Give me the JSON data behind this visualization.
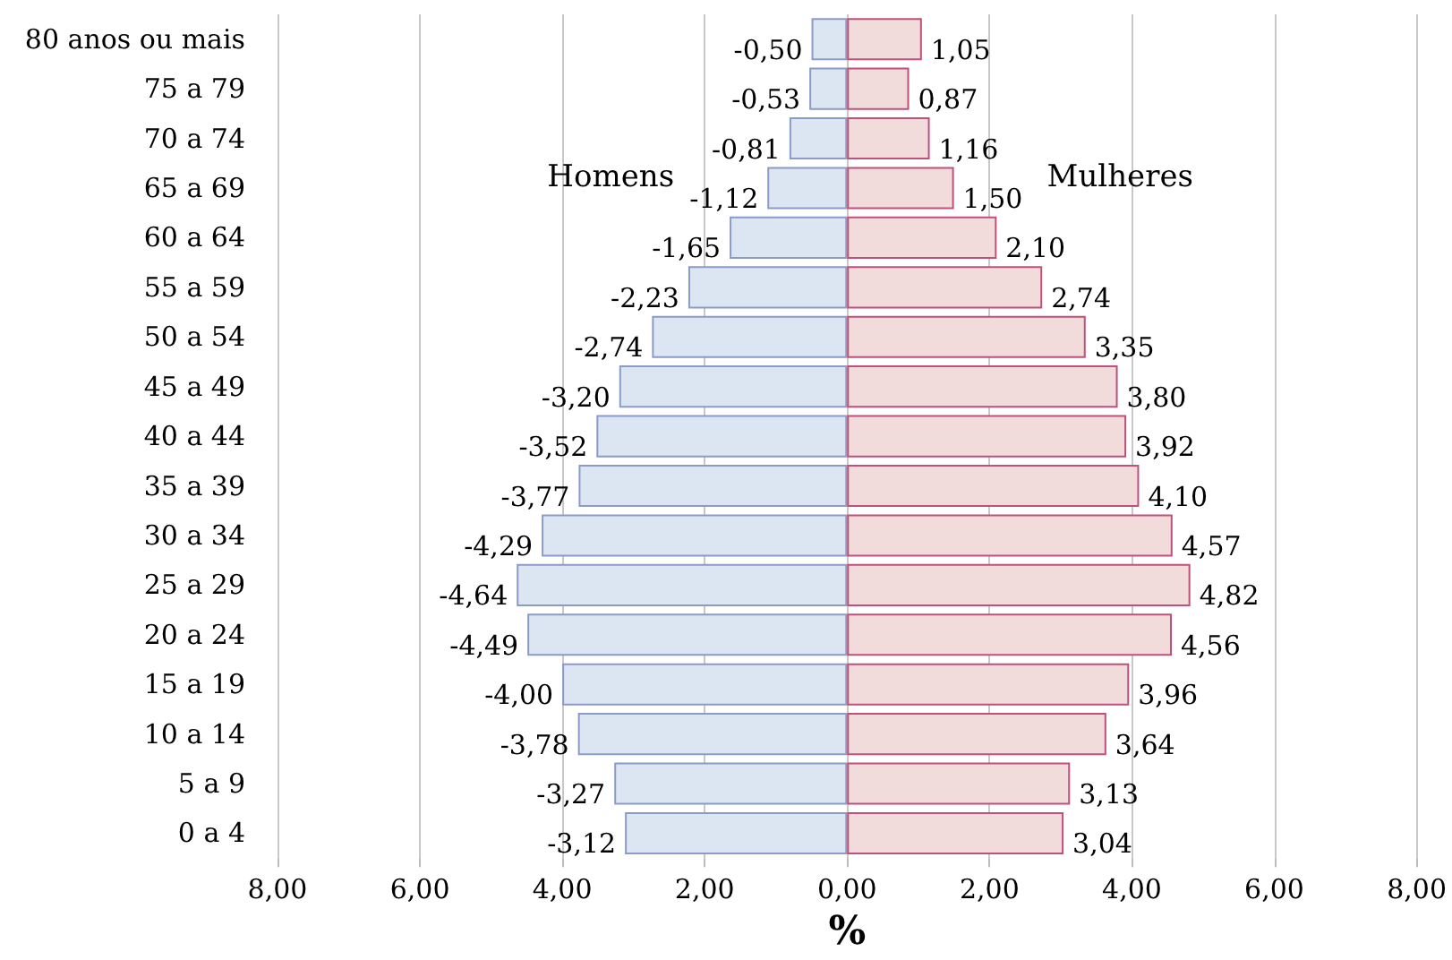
{
  "chart_data": {
    "type": "bar",
    "orientation": "horizontal",
    "xlabel": "%",
    "categories": [
      "80 anos ou mais",
      "75 a 79",
      "70 a 74",
      "65 a 69",
      "60 a 64",
      "55 a 59",
      "50 a 54",
      "45 a 49",
      "40 a 44",
      "35 a 39",
      "30 a 34",
      "25 a 29",
      "20 a 24",
      "15 a 19",
      "10 a 14",
      "5 a 9",
      "0 a 4"
    ],
    "series": [
      {
        "name": "Homens",
        "color": "#dce6f2",
        "values": [
          -0.5,
          -0.53,
          -0.81,
          -1.12,
          -1.65,
          -2.23,
          -2.74,
          -3.2,
          -3.52,
          -3.77,
          -4.29,
          -4.64,
          -4.49,
          -4.0,
          -3.78,
          -3.27,
          -3.12
        ],
        "value_labels": [
          "-0,50",
          "-0,53",
          "-0,81",
          "-1,12",
          "-1,65",
          "-2,23",
          "-2,74",
          "-3,20",
          "-3,52",
          "-3,77",
          "-4,29",
          "-4,64",
          "-4,49",
          "-4,00",
          "-3,78",
          "-3,27",
          "-3,12"
        ]
      },
      {
        "name": "Mulheres",
        "color": "#f2dcdb",
        "values": [
          1.05,
          0.87,
          1.16,
          1.5,
          2.1,
          2.74,
          3.35,
          3.8,
          3.92,
          4.1,
          4.57,
          4.82,
          4.56,
          3.96,
          3.64,
          3.13,
          3.04
        ],
        "value_labels": [
          "1,05",
          "0,87",
          "1,16",
          "1,50",
          "2,10",
          "2,74",
          "3,35",
          "3,80",
          "3,92",
          "4,10",
          "4,57",
          "4,82",
          "4,56",
          "3,96",
          "3,64",
          "3,13",
          "3,04"
        ]
      }
    ],
    "xlim": [
      -8,
      8
    ],
    "xticks": [
      {
        "value": -8,
        "label": "8,00"
      },
      {
        "value": -6,
        "label": "6,00"
      },
      {
        "value": -4,
        "label": "4,00"
      },
      {
        "value": -2,
        "label": "2,00"
      },
      {
        "value": 0,
        "label": "0,00"
      },
      {
        "value": 2,
        "label": "2,00"
      },
      {
        "value": 4,
        "label": "4,00"
      },
      {
        "value": 6,
        "label": "6,00"
      },
      {
        "value": 8,
        "label": "8,00"
      }
    ],
    "grid": "x",
    "legend": false,
    "stacked": true
  }
}
